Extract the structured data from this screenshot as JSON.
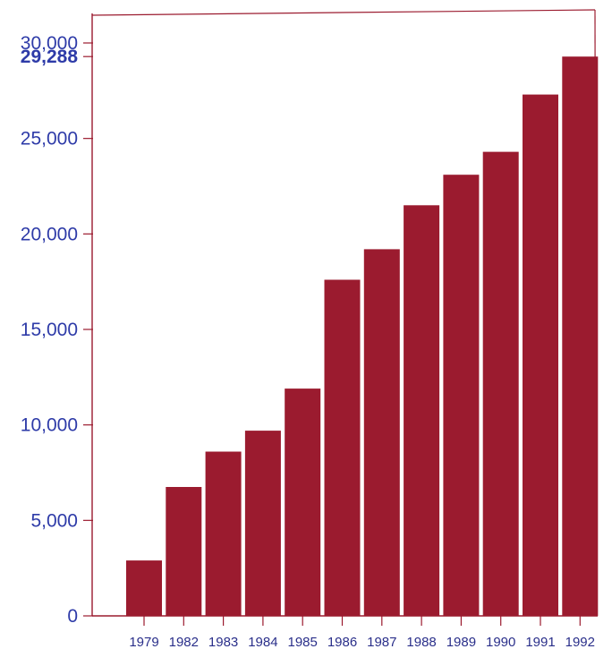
{
  "chart_data": {
    "type": "bar",
    "title": "",
    "xlabel": "",
    "ylabel": "",
    "categories": [
      "1979",
      "1982",
      "1983",
      "1984",
      "1985",
      "1986",
      "1987",
      "1988",
      "1989",
      "1990",
      "1991",
      "1992"
    ],
    "values": [
      2900,
      6750,
      8600,
      9700,
      11900,
      17600,
      19200,
      21500,
      23100,
      24300,
      27300,
      29288
    ],
    "ylim": [
      0,
      30000
    ],
    "yticks": [
      {
        "value": 0,
        "label": "0"
      },
      {
        "value": 5000,
        "label": "5,000"
      },
      {
        "value": 10000,
        "label": "10,000"
      },
      {
        "value": 15000,
        "label": "15,000"
      },
      {
        "value": 20000,
        "label": "20,000"
      },
      {
        "value": 25000,
        "label": "25,000"
      },
      {
        "value": 30000,
        "label": "30,000"
      }
    ],
    "highlight_tick": {
      "value": 29288,
      "label": "29,288"
    },
    "grid": false,
    "legend": "none",
    "colors": {
      "bar": "#9b1b2f",
      "axis": "#9b1b2f",
      "tick_label": "#2e3ba8",
      "x_label": "#2a2f8a",
      "frame": "#9b1b2f"
    }
  }
}
